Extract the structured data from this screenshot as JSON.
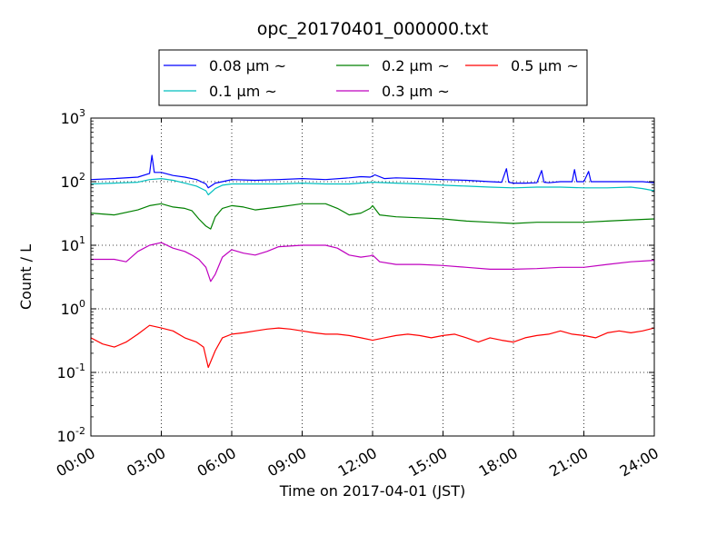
{
  "chart_data": {
    "type": "line",
    "title": "opc_20170401_000000.txt",
    "xlabel": "Time on 2017-04-01 (JST)",
    "ylabel": "Count / L",
    "x_range_hours": [
      0,
      24
    ],
    "x_ticks": [
      0,
      3,
      6,
      9,
      12,
      15,
      18,
      21,
      24
    ],
    "x_tick_labels": [
      "00:00",
      "03:00",
      "06:00",
      "09:00",
      "12:00",
      "15:00",
      "18:00",
      "21:00",
      "24:00"
    ],
    "y_scale": "log",
    "ylim": [
      0.01,
      1000
    ],
    "y_ticks": [
      0.01,
      0.1,
      1,
      10,
      100,
      1000
    ],
    "y_tick_labels": [
      {
        "base": "10",
        "exp": "-2"
      },
      {
        "base": "10",
        "exp": "-1"
      },
      {
        "base": "10",
        "exp": "0"
      },
      {
        "base": "10",
        "exp": "1"
      },
      {
        "base": "10",
        "exp": "2"
      },
      {
        "base": "10",
        "exp": "3"
      }
    ],
    "grid": true,
    "legend_position": "top-center",
    "series": [
      {
        "name": "0.08 μm ~",
        "color": "#0000ff",
        "x": [
          0,
          1,
          2,
          2.5,
          2.6,
          2.7,
          3,
          3.5,
          4,
          4.5,
          4.9,
          5,
          5.3,
          5.6,
          6,
          7,
          8,
          9,
          10,
          11,
          11.5,
          11.9,
          12.1,
          12.5,
          13,
          14,
          15,
          16,
          17,
          17.5,
          17.7,
          17.8,
          18,
          18.5,
          19,
          19.2,
          19.3,
          19.5,
          20,
          20.5,
          20.6,
          20.7,
          21,
          21.2,
          21.3,
          21.5,
          22,
          22.5,
          23,
          23.5,
          24
        ],
        "y": [
          108,
          112,
          118,
          135,
          260,
          140,
          140,
          125,
          118,
          108,
          92,
          80,
          95,
          100,
          108,
          105,
          108,
          112,
          108,
          115,
          120,
          118,
          128,
          112,
          115,
          112,
          108,
          105,
          100,
          98,
          160,
          98,
          95,
          95,
          96,
          150,
          98,
          96,
          100,
          100,
          155,
          100,
          100,
          145,
          100,
          100,
          100,
          100,
          100,
          100,
          96
        ]
      },
      {
        "name": "0.1 μm ~",
        "color": "#00bfbf",
        "x": [
          0,
          1,
          2,
          2.5,
          3,
          3.5,
          4,
          4.5,
          4.9,
          5,
          5.3,
          5.6,
          6,
          7,
          8,
          9,
          10,
          11,
          12,
          13,
          14,
          15,
          16,
          17,
          18,
          19,
          20,
          21,
          22,
          23,
          23.5,
          24
        ],
        "y": [
          92,
          95,
          98,
          108,
          112,
          105,
          95,
          85,
          72,
          62,
          78,
          88,
          92,
          92,
          92,
          95,
          92,
          92,
          98,
          95,
          92,
          88,
          85,
          82,
          80,
          82,
          82,
          80,
          80,
          82,
          78,
          72
        ]
      },
      {
        "name": "0.2 μm ~",
        "color": "#008000",
        "x": [
          0,
          1,
          2,
          2.5,
          3,
          3.5,
          4,
          4.3,
          4.6,
          4.9,
          5.1,
          5.3,
          5.6,
          6,
          6.5,
          7,
          8,
          9,
          10,
          10.5,
          11,
          11.5,
          11.9,
          12,
          12.3,
          13,
          14,
          15,
          16,
          17,
          18,
          19,
          20,
          21,
          22,
          23,
          24
        ],
        "y": [
          32,
          30,
          36,
          42,
          45,
          40,
          38,
          35,
          26,
          20,
          18,
          28,
          38,
          42,
          40,
          36,
          40,
          45,
          45,
          38,
          30,
          32,
          38,
          42,
          30,
          28,
          27,
          26,
          24,
          23,
          22,
          23,
          23,
          23,
          24,
          25,
          26
        ]
      },
      {
        "name": "0.3 μm ~",
        "color": "#bf00bf",
        "x": [
          0,
          1,
          1.5,
          2,
          2.5,
          3,
          3.5,
          4,
          4.3,
          4.6,
          4.9,
          5.1,
          5.3,
          5.6,
          6,
          6.5,
          7,
          7.5,
          8,
          9,
          10,
          10.5,
          11,
          11.5,
          11.9,
          12,
          12.3,
          13,
          14,
          15,
          16,
          17,
          18,
          19,
          20,
          21,
          22,
          23,
          24
        ],
        "y": [
          6,
          6,
          5.5,
          8,
          10,
          11,
          9,
          8,
          7,
          6,
          4.5,
          2.7,
          3.5,
          6.5,
          8.5,
          7.5,
          7,
          8,
          9.5,
          10,
          10,
          9,
          7,
          6.5,
          6.8,
          7,
          5.5,
          5,
          5,
          4.8,
          4.5,
          4.2,
          4.2,
          4.3,
          4.5,
          4.5,
          5,
          5.5,
          5.8
        ]
      },
      {
        "name": "0.5 μm ~",
        "color": "#ff0000",
        "x": [
          0,
          0.5,
          1,
          1.5,
          2,
          2.5,
          3,
          3.5,
          4,
          4.5,
          4.8,
          5,
          5.3,
          5.6,
          6,
          6.5,
          7,
          7.5,
          8,
          8.5,
          9,
          9.5,
          10,
          10.5,
          11,
          11.5,
          12,
          12.5,
          13,
          13.5,
          14,
          14.5,
          15,
          15.5,
          16,
          16.5,
          17,
          17.5,
          18,
          18.5,
          19,
          19.5,
          20,
          20.5,
          21,
          21.5,
          22,
          22.5,
          23,
          23.5,
          24
        ],
        "y": [
          0.35,
          0.28,
          0.25,
          0.3,
          0.4,
          0.55,
          0.5,
          0.45,
          0.35,
          0.3,
          0.25,
          0.12,
          0.22,
          0.35,
          0.4,
          0.42,
          0.45,
          0.48,
          0.5,
          0.48,
          0.45,
          0.42,
          0.4,
          0.4,
          0.38,
          0.35,
          0.32,
          0.35,
          0.38,
          0.4,
          0.38,
          0.35,
          0.38,
          0.4,
          0.35,
          0.3,
          0.35,
          0.32,
          0.3,
          0.35,
          0.38,
          0.4,
          0.45,
          0.4,
          0.38,
          0.35,
          0.42,
          0.45,
          0.42,
          0.45,
          0.5
        ]
      }
    ]
  }
}
